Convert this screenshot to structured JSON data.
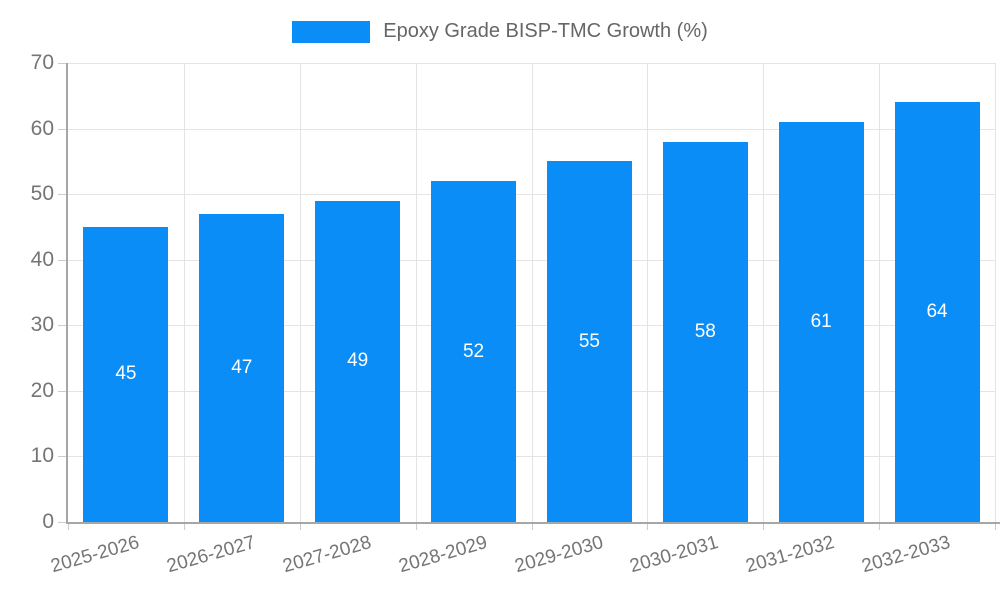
{
  "legend": {
    "label": "Epoxy Grade BISP-TMC Growth (%)"
  },
  "colors": {
    "bar": "#0a8df6",
    "grid_line": "#e4e4e4",
    "axis_line": "#a6a6a6",
    "tick_mark": "#cccccc",
    "tick_text": "#757575",
    "legend_text": "#666666",
    "value_label": "#ffffff",
    "background": "#ffffff"
  },
  "chart_data": {
    "type": "bar",
    "title": "",
    "xlabel": "",
    "ylabel": "",
    "categories": [
      "2025-2026",
      "2026-2027",
      "2027-2028",
      "2028-2029",
      "2029-2030",
      "2030-2031",
      "2031-2032",
      "2032-2033"
    ],
    "series": [
      {
        "name": "Epoxy Grade BISP-TMC Growth (%)",
        "values": [
          45,
          47,
          49,
          52,
          55,
          58,
          61,
          64
        ]
      }
    ],
    "ylim": [
      0,
      70
    ],
    "yticks": [
      0,
      10,
      20,
      30,
      40,
      50,
      60,
      70
    ],
    "grid": true,
    "legend_position": "top",
    "value_labels_position": "inside-center",
    "x_label_rotation_deg": -16
  }
}
